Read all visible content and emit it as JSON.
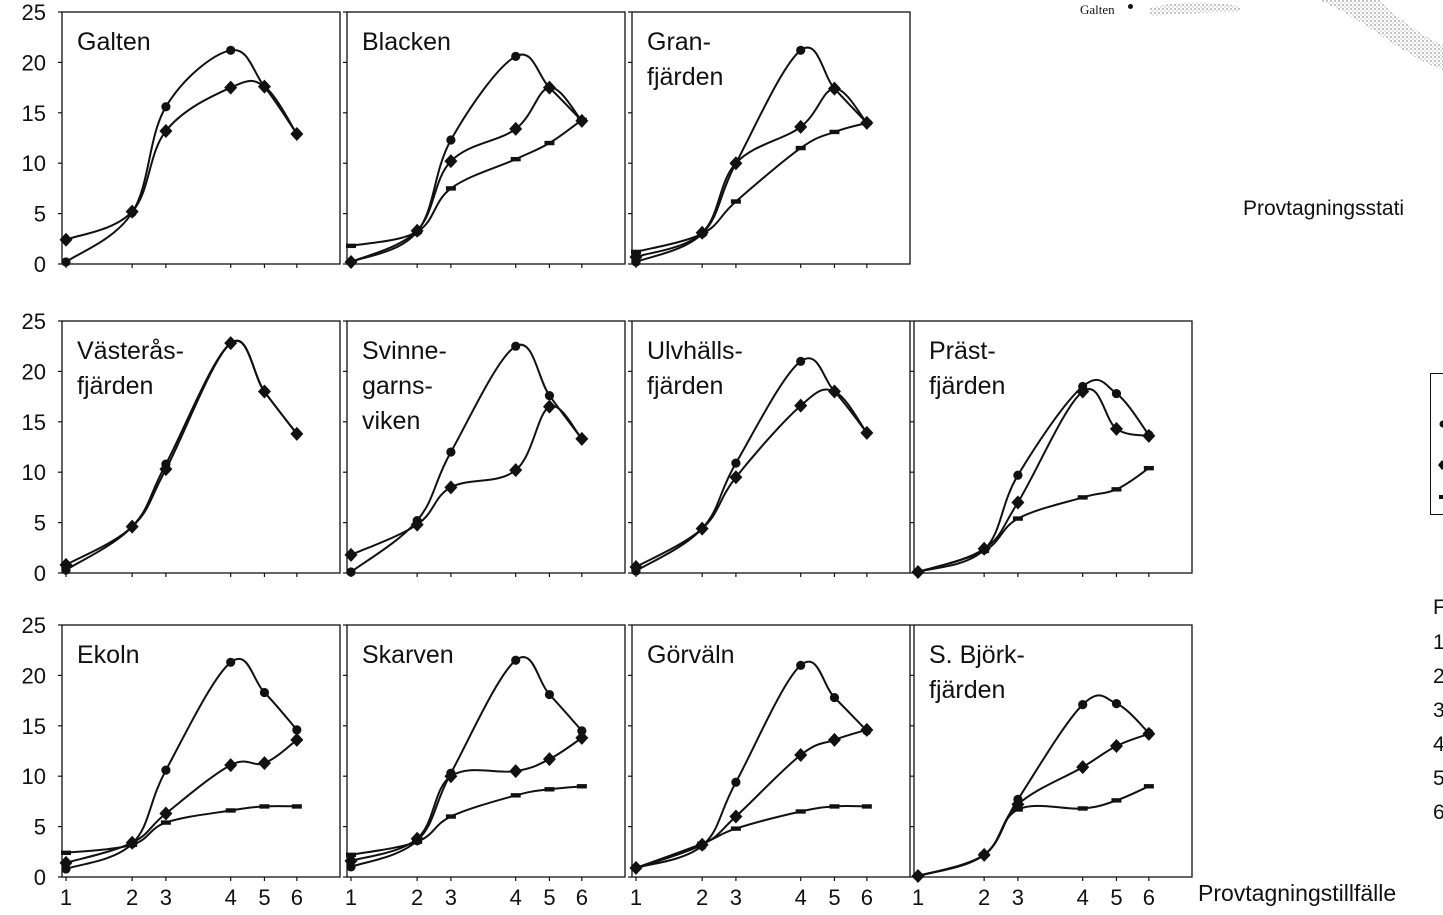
{
  "chart_data": [
    {
      "type": "line",
      "title": "Galten",
      "ylim": [
        0,
        25
      ],
      "yticks": [
        0,
        5,
        10,
        15,
        20,
        25
      ],
      "xticks": [
        1,
        2,
        3,
        4,
        5,
        6
      ],
      "series": [
        {
          "marker": "circle",
          "x": [
            1,
            2,
            3,
            4,
            5,
            6
          ],
          "y": [
            0.2,
            5.1,
            15.6,
            21.2,
            17.6,
            12.9
          ]
        },
        {
          "marker": "diamond",
          "x": [
            1,
            2,
            3,
            4,
            5,
            6
          ],
          "y": [
            2.4,
            5.2,
            13.2,
            17.5,
            17.6,
            12.9
          ]
        }
      ]
    },
    {
      "type": "line",
      "title": "Blacken",
      "ylim": [
        0,
        25
      ],
      "yticks": [
        0,
        5,
        10,
        15,
        20,
        25
      ],
      "xticks": [
        1,
        2,
        3,
        4,
        5,
        6
      ],
      "series": [
        {
          "marker": "circle",
          "x": [
            1,
            2,
            3,
            4,
            5,
            6
          ],
          "y": [
            0.2,
            3.2,
            12.3,
            20.6,
            17.5,
            14.2
          ]
        },
        {
          "marker": "diamond",
          "x": [
            1,
            2,
            3,
            4,
            5,
            6
          ],
          "y": [
            0.2,
            3.3,
            10.2,
            13.4,
            17.5,
            14.2
          ]
        },
        {
          "marker": "dash",
          "x": [
            1,
            2,
            3,
            4,
            5,
            6
          ],
          "y": [
            1.8,
            3.2,
            7.5,
            10.4,
            12.0,
            14.3
          ]
        }
      ]
    },
    {
      "type": "line",
      "title": "Gran-\nfjärden",
      "ylim": [
        0,
        25
      ],
      "yticks": [
        0,
        5,
        10,
        15,
        20,
        25
      ],
      "xticks": [
        1,
        2,
        3,
        4,
        5,
        6
      ],
      "series": [
        {
          "marker": "circle",
          "x": [
            1,
            2,
            3,
            4,
            5,
            6
          ],
          "y": [
            0.2,
            3.0,
            10.0,
            21.2,
            17.4,
            14.0
          ]
        },
        {
          "marker": "diamond",
          "x": [
            1,
            2,
            3,
            4,
            5,
            6
          ],
          "y": [
            0.7,
            3.1,
            10.0,
            13.6,
            17.4,
            14.0
          ]
        },
        {
          "marker": "dash",
          "x": [
            1,
            2,
            3,
            4,
            5,
            6
          ],
          "y": [
            1.2,
            3.0,
            6.2,
            11.5,
            13.1,
            14.0
          ]
        }
      ]
    },
    {
      "type": "line",
      "title": "Västerås-\nfjärden",
      "ylim": [
        0,
        25
      ],
      "yticks": [
        0,
        5,
        10,
        15,
        20,
        25
      ],
      "xticks": [
        1,
        2,
        3,
        4,
        5,
        6
      ],
      "series": [
        {
          "marker": "circle",
          "x": [
            1,
            2,
            3,
            4,
            5,
            6
          ],
          "y": [
            0.3,
            4.6,
            10.8,
            22.8,
            18.0,
            13.8
          ]
        },
        {
          "marker": "diamond",
          "x": [
            1,
            2,
            3,
            4,
            5,
            6
          ],
          "y": [
            0.8,
            4.6,
            10.3,
            22.8,
            18.0,
            13.8
          ]
        }
      ]
    },
    {
      "type": "line",
      "title": "Svinne-\ngarns-\nviken",
      "ylim": [
        0,
        25
      ],
      "yticks": [
        0,
        5,
        10,
        15,
        20,
        25
      ],
      "xticks": [
        1,
        2,
        3,
        4,
        5,
        6
      ],
      "series": [
        {
          "marker": "circle",
          "x": [
            1,
            2,
            3,
            4,
            5,
            6
          ],
          "y": [
            0.1,
            5.2,
            12.0,
            22.5,
            17.6,
            13.3
          ]
        },
        {
          "marker": "diamond",
          "x": [
            1,
            2,
            3,
            4,
            5,
            6
          ],
          "y": [
            1.8,
            4.8,
            8.5,
            10.2,
            16.5,
            13.3
          ]
        }
      ]
    },
    {
      "type": "line",
      "title": "Ulvhälls-\nfjärden",
      "ylim": [
        0,
        25
      ],
      "yticks": [
        0,
        5,
        10,
        15,
        20,
        25
      ],
      "xticks": [
        1,
        2,
        3,
        4,
        5,
        6
      ],
      "series": [
        {
          "marker": "circle",
          "x": [
            1,
            2,
            3,
            4,
            5,
            6
          ],
          "y": [
            0.2,
            4.4,
            10.9,
            21.0,
            18.0,
            13.9
          ]
        },
        {
          "marker": "diamond",
          "x": [
            1,
            2,
            3,
            4,
            5,
            6
          ],
          "y": [
            0.6,
            4.4,
            9.5,
            16.6,
            18.0,
            13.9
          ]
        }
      ]
    },
    {
      "type": "line",
      "title": "Präst-\nfjärden",
      "ylim": [
        0,
        25
      ],
      "yticks": [
        0,
        5,
        10,
        15,
        20,
        25
      ],
      "xticks": [
        1,
        2,
        3,
        4,
        5,
        6
      ],
      "series": [
        {
          "marker": "circle",
          "x": [
            1,
            2,
            3,
            4,
            5,
            6
          ],
          "y": [
            0.1,
            2.3,
            9.7,
            18.5,
            17.8,
            13.7
          ]
        },
        {
          "marker": "diamond",
          "x": [
            1,
            2,
            3,
            4,
            5,
            6
          ],
          "y": [
            0.1,
            2.4,
            7.0,
            18.0,
            14.3,
            13.6
          ]
        },
        {
          "marker": "dash",
          "x": [
            1,
            2,
            3,
            4,
            5,
            6
          ],
          "y": [
            0.1,
            2.2,
            5.4,
            7.5,
            8.3,
            10.4
          ]
        }
      ]
    },
    {
      "type": "line",
      "title": "Ekoln",
      "ylim": [
        0,
        25
      ],
      "yticks": [
        0,
        5,
        10,
        15,
        20,
        25
      ],
      "xticks": [
        1,
        2,
        3,
        4,
        5,
        6
      ],
      "series": [
        {
          "marker": "circle",
          "x": [
            1,
            2,
            3,
            4,
            5,
            6
          ],
          "y": [
            0.8,
            3.3,
            10.6,
            21.3,
            18.3,
            14.6
          ]
        },
        {
          "marker": "diamond",
          "x": [
            1,
            2,
            3,
            4,
            5,
            6
          ],
          "y": [
            1.4,
            3.4,
            6.3,
            11.1,
            11.3,
            13.6
          ]
        },
        {
          "marker": "dash",
          "x": [
            1,
            2,
            3,
            4,
            5,
            6
          ],
          "y": [
            2.4,
            3.2,
            5.4,
            6.6,
            7.0,
            7.0
          ]
        }
      ]
    },
    {
      "type": "line",
      "title": "Skarven",
      "ylim": [
        0,
        25
      ],
      "yticks": [
        0,
        5,
        10,
        15,
        20,
        25
      ],
      "xticks": [
        1,
        2,
        3,
        4,
        5,
        6
      ],
      "series": [
        {
          "marker": "circle",
          "x": [
            1,
            2,
            3,
            4,
            5,
            6
          ],
          "y": [
            1.0,
            3.6,
            10.3,
            21.5,
            18.1,
            14.5
          ]
        },
        {
          "marker": "diamond",
          "x": [
            1,
            2,
            3,
            4,
            5,
            6
          ],
          "y": [
            1.6,
            3.8,
            10.0,
            10.5,
            11.7,
            13.8
          ]
        },
        {
          "marker": "dash",
          "x": [
            1,
            2,
            3,
            4,
            5,
            6
          ],
          "y": [
            2.2,
            3.5,
            6.0,
            8.1,
            8.7,
            9.0
          ]
        }
      ]
    },
    {
      "type": "line",
      "title": "Görväln",
      "ylim": [
        0,
        25
      ],
      "yticks": [
        0,
        5,
        10,
        15,
        20,
        25
      ],
      "xticks": [
        1,
        2,
        3,
        4,
        5,
        6
      ],
      "series": [
        {
          "marker": "circle",
          "x": [
            1,
            2,
            3,
            4,
            5,
            6
          ],
          "y": [
            0.9,
            3.1,
            9.4,
            21.0,
            17.8,
            14.5
          ]
        },
        {
          "marker": "diamond",
          "x": [
            1,
            2,
            3,
            4,
            5,
            6
          ],
          "y": [
            0.9,
            3.2,
            6.0,
            12.1,
            13.6,
            14.6
          ]
        },
        {
          "marker": "dash",
          "x": [
            1,
            2,
            3,
            4,
            5,
            6
          ],
          "y": [
            0.9,
            3.3,
            4.8,
            6.5,
            7.0,
            7.0
          ]
        }
      ]
    },
    {
      "type": "line",
      "title": "S. Björk-\nfjärden",
      "ylim": [
        0,
        25
      ],
      "yticks": [
        0,
        5,
        10,
        15,
        20,
        25
      ],
      "xticks": [
        1,
        2,
        3,
        4,
        5,
        6
      ],
      "series": [
        {
          "marker": "circle",
          "x": [
            1,
            2,
            3,
            4,
            5,
            6
          ],
          "y": [
            0.1,
            2.2,
            7.7,
            17.1,
            17.2,
            14.3
          ]
        },
        {
          "marker": "diamond",
          "x": [
            1,
            2,
            3,
            4,
            5,
            6
          ],
          "y": [
            0.1,
            2.2,
            7.2,
            10.9,
            13.0,
            14.2
          ]
        },
        {
          "marker": "dash",
          "x": [
            1,
            2,
            3,
            4,
            5,
            6
          ],
          "y": [
            0.1,
            2.2,
            6.7,
            6.8,
            7.6,
            9.0
          ]
        }
      ]
    }
  ],
  "x_axis_title": "Provtagningstillfälle",
  "map_label": "Galten",
  "station_text": "Provtagningsstati",
  "footnote": {
    "title": "F",
    "items": [
      "1",
      "2",
      "3",
      "4",
      "5",
      "6"
    ]
  },
  "colors": {
    "ink": "#111111",
    "map_gray": "#bdbdbd"
  }
}
